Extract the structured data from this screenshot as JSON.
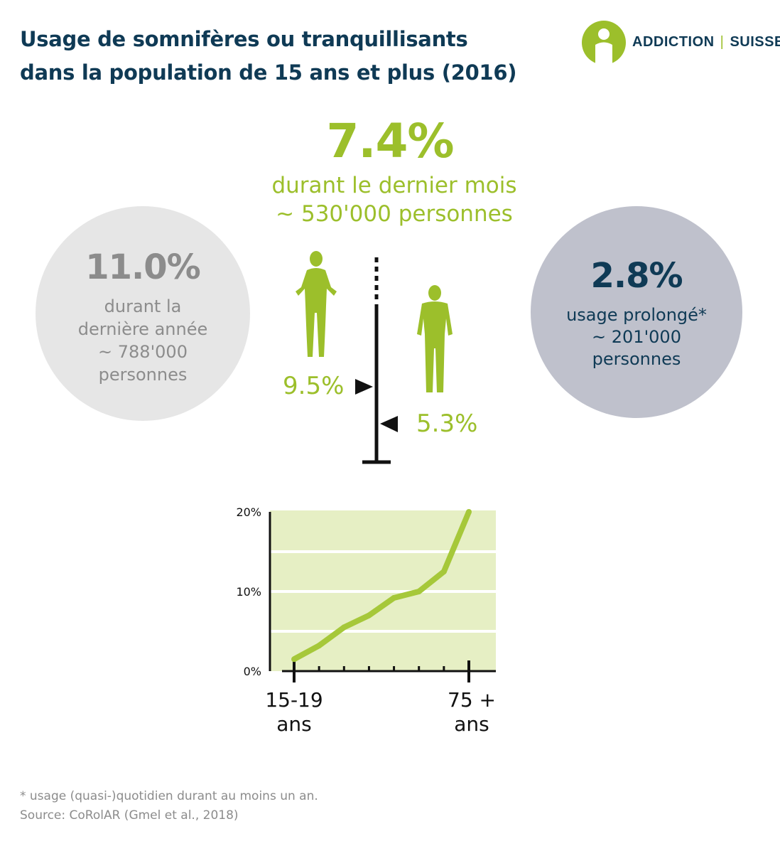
{
  "header": {
    "title_line1": "Usage de somnifères ou tranquillisants",
    "title_line2": "dans la population de 15 ans et plus (2016)",
    "logo_left": "ADDICTION",
    "logo_sep": "|",
    "logo_right": "SUISSE"
  },
  "month": {
    "value": "7.4%",
    "line1": "durant le dernier mois",
    "line2": "~ 530'000 personnes"
  },
  "year": {
    "value": "11.0%",
    "line1": "durant la",
    "line2": "dernière année",
    "line3": "~ 788'000",
    "line4": "personnes"
  },
  "prolonged": {
    "value": "2.8%",
    "line1": "usage prolongé*",
    "line2": "~ 201'000",
    "line3": "personnes"
  },
  "gender": {
    "women_value": "9.5%",
    "men_value": "5.3%",
    "women_num": 9.5,
    "men_num": 5.3
  },
  "chart_data": {
    "type": "line",
    "x": [
      1,
      2,
      3,
      4,
      5,
      6,
      7,
      8
    ],
    "values": [
      1.5,
      3.2,
      5.5,
      7,
      9.2,
      10,
      12.5,
      20
    ],
    "ylim": [
      0,
      20
    ],
    "yticks": [
      0,
      5,
      10,
      15,
      20
    ],
    "ytick_labels": [
      "0%",
      "10%",
      "20%"
    ],
    "x_first_label": "15-19",
    "x_first_unit": "ans",
    "x_last_label": "75 +",
    "x_last_unit": "ans",
    "grid": true,
    "colors": {
      "line": "#a6c83a",
      "area": "#e6efc4",
      "grid": "#ffffff"
    }
  },
  "footer": {
    "note": "* usage (quasi-)quotidien durant au moins un an.",
    "source": "Source: CoRolAR (Gmel et al., 2018)"
  },
  "colors": {
    "green": "#9cbf2b",
    "navy": "#0f3a55",
    "light_gray": "#e6e6e6",
    "blue_gray": "#bfc1cc"
  }
}
